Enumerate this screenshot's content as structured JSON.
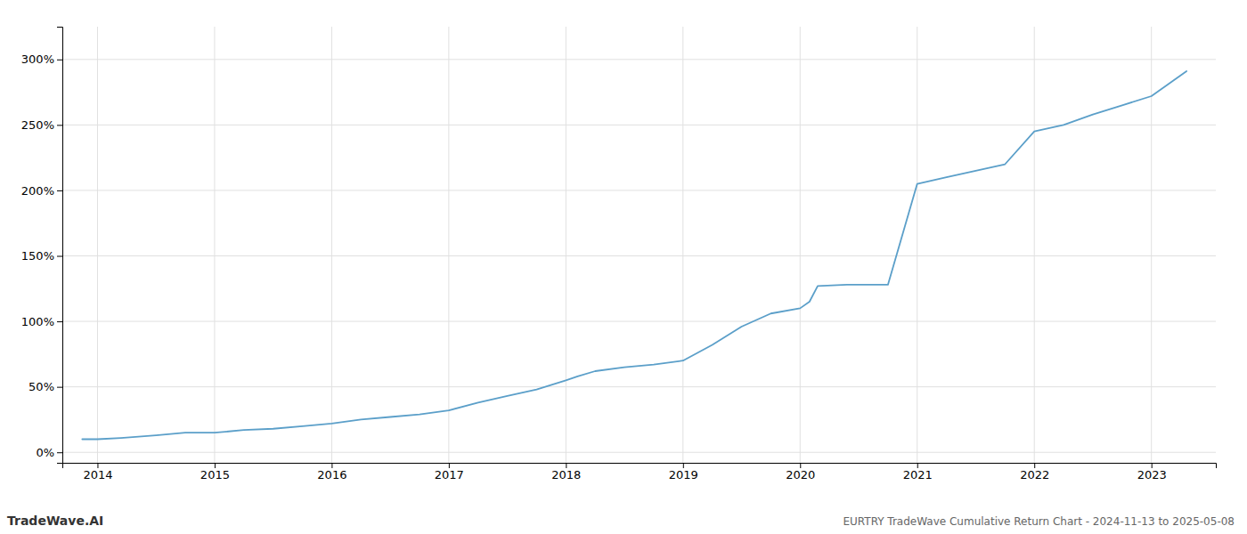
{
  "chart_data": {
    "type": "line",
    "title": "EURTRY TradeWave Cumulative Return Chart - 2024-11-13 to 2025-05-08",
    "annotations": [
      "TradeWave.AI"
    ],
    "color": "#5b9fc9",
    "grid": true,
    "x": [
      2013.87,
      2014.0,
      2014.2,
      2014.5,
      2014.75,
      2015.0,
      2015.25,
      2015.5,
      2015.75,
      2016.0,
      2016.25,
      2016.5,
      2016.75,
      2017.0,
      2017.25,
      2017.5,
      2017.75,
      2018.0,
      2018.1,
      2018.25,
      2018.5,
      2018.75,
      2019.0,
      2019.25,
      2019.5,
      2019.75,
      2020.0,
      2020.08,
      2020.15,
      2020.4,
      2020.75,
      2021.0,
      2021.25,
      2021.5,
      2021.75,
      2022.0,
      2022.25,
      2022.5,
      2022.75,
      2023.0,
      2023.3
    ],
    "values": [
      10,
      10,
      11,
      13,
      15,
      15,
      17,
      18,
      20,
      22,
      25,
      27,
      29,
      32,
      38,
      43,
      48,
      55,
      58,
      62,
      65,
      67,
      70,
      82,
      96,
      106,
      110,
      115,
      127,
      128,
      128,
      205,
      210,
      215,
      220,
      245,
      250,
      258,
      265,
      272,
      291
    ],
    "xlim": [
      2013.7,
      2023.55
    ],
    "xticks": [
      2014,
      2015,
      2016,
      2017,
      2018,
      2019,
      2020,
      2021,
      2022,
      2023
    ],
    "ylim": [
      -8,
      325
    ],
    "yticks": [
      {
        "value": 0,
        "label": "0%"
      },
      {
        "value": 50,
        "label": "50%"
      },
      {
        "value": 100,
        "label": "100%"
      },
      {
        "value": 150,
        "label": "150%"
      },
      {
        "value": 200,
        "label": "200%"
      },
      {
        "value": 250,
        "label": "250%"
      },
      {
        "value": 300,
        "label": "300%"
      }
    ]
  }
}
